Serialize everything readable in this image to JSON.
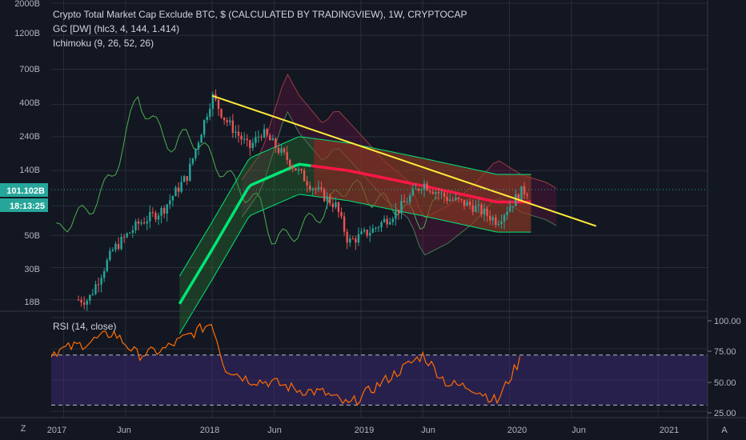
{
  "legend": {
    "title": "Crypto Total Market Cap Exclude BTC, $ (CALCULATED BY TRADINGVIEW), 1W, CRYPTOCAP",
    "indicator1": "GC [DW] (hlc3, 4, 144, 1.414)",
    "indicator2": "Ichimoku (9, 26, 52, 26)",
    "rsi_label": "RSI (14, close)"
  },
  "price_axis": {
    "ticks": [
      "2000B",
      "1200B",
      "700B",
      "400B",
      "240B",
      "140B",
      "80B",
      "50B",
      "30B",
      "18B"
    ],
    "current_price": "101.102B",
    "countdown": "18:13:25"
  },
  "rsi_axis": {
    "ticks": [
      "100.00",
      "75.00",
      "50.00",
      "25.00"
    ]
  },
  "time_axis": {
    "ticks": [
      "2017",
      "Jun",
      "2018",
      "Jun",
      "2019",
      "Jun",
      "2020",
      "Jun",
      "2021"
    ]
  },
  "corner": {
    "left_icon": "Z",
    "right_icon": "A"
  },
  "colors": {
    "background": "#131722",
    "grid": "#2a2e39",
    "candle_up": "#26a69a",
    "candle_down": "#ef5350",
    "trendline": "#ffeb3b",
    "gaussian_channel_green": "#00e676",
    "gaussian_channel_red": "#ff1744",
    "rsi_line": "#ff6d00",
    "rsi_band": "#3b2870",
    "price_tag": "#26a69a"
  },
  "chart_data": [
    {
      "type": "candlestick",
      "title": "Crypto Total Market Cap Exclude BTC, $ (CALCULATED BY TRADINGVIEW), 1W, CRYPTOCAP",
      "yscale": "log",
      "ylabel_ticks_billions": [
        2000,
        1200,
        700,
        400,
        240,
        140,
        80,
        50,
        30,
        18
      ],
      "ylim_billions": [
        15,
        2000
      ],
      "xlim": [
        "2016-12",
        "2021-05"
      ],
      "close_approx_billions": [
        {
          "date": "2017-03",
          "value": 18
        },
        {
          "date": "2017-05",
          "value": 40
        },
        {
          "date": "2017-07",
          "value": 60
        },
        {
          "date": "2017-09",
          "value": 75
        },
        {
          "date": "2017-11",
          "value": 130
        },
        {
          "date": "2018-01",
          "value": 460
        },
        {
          "date": "2018-02",
          "value": 320
        },
        {
          "date": "2018-04",
          "value": 200
        },
        {
          "date": "2018-05",
          "value": 260
        },
        {
          "date": "2018-07",
          "value": 170
        },
        {
          "date": "2018-09",
          "value": 110
        },
        {
          "date": "2018-11",
          "value": 80
        },
        {
          "date": "2018-12",
          "value": 45
        },
        {
          "date": "2019-02",
          "value": 55
        },
        {
          "date": "2019-04",
          "value": 75
        },
        {
          "date": "2019-06",
          "value": 115
        },
        {
          "date": "2019-08",
          "value": 90
        },
        {
          "date": "2019-10",
          "value": 80
        },
        {
          "date": "2019-12",
          "value": 63
        },
        {
          "date": "2020-02",
          "value": 101.102
        }
      ],
      "trendline": {
        "from": {
          "date": "2018-01",
          "value": 460
        },
        "to": {
          "date": "2020-08",
          "value": 58
        }
      },
      "gaussian_channel_mid_approx_billions": [
        {
          "date": "2017-10",
          "value": 15
        },
        {
          "date": "2018-01",
          "value": 40
        },
        {
          "date": "2018-04",
          "value": 110
        },
        {
          "date": "2018-08",
          "value": 155
        },
        {
          "date": "2018-12",
          "value": 140
        },
        {
          "date": "2019-06",
          "value": 110
        },
        {
          "date": "2019-12",
          "value": 85
        },
        {
          "date": "2020-02",
          "value": 85
        }
      ],
      "current_price": "101.102B",
      "grid": true
    },
    {
      "type": "line",
      "title": "RSI (14, close)",
      "ylim": [
        20,
        105
      ],
      "y_ticks": [
        100,
        75,
        50,
        25
      ],
      "band": [
        30,
        70
      ],
      "values": [
        {
          "date": "2016-12",
          "value": 72
        },
        {
          "date": "2017-03",
          "value": 80
        },
        {
          "date": "2017-05",
          "value": 88
        },
        {
          "date": "2017-07",
          "value": 70
        },
        {
          "date": "2017-09",
          "value": 74
        },
        {
          "date": "2017-11",
          "value": 85
        },
        {
          "date": "2018-01",
          "value": 96
        },
        {
          "date": "2018-02",
          "value": 60
        },
        {
          "date": "2018-04",
          "value": 50
        },
        {
          "date": "2018-06",
          "value": 48
        },
        {
          "date": "2018-08",
          "value": 42
        },
        {
          "date": "2018-10",
          "value": 40
        },
        {
          "date": "2018-12",
          "value": 30
        },
        {
          "date": "2019-03",
          "value": 50
        },
        {
          "date": "2019-06",
          "value": 70
        },
        {
          "date": "2019-08",
          "value": 47
        },
        {
          "date": "2019-10",
          "value": 44
        },
        {
          "date": "2019-12",
          "value": 33
        },
        {
          "date": "2020-02",
          "value": 69
        }
      ]
    }
  ]
}
